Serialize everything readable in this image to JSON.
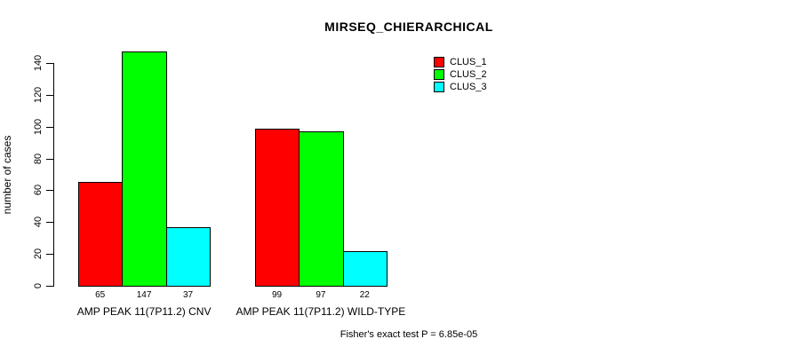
{
  "chart_data": {
    "type": "bar",
    "title": "MIRSEQ_CHIERARCHICAL",
    "xlabel": "",
    "ylabel": "number of cases",
    "ylim": [
      0,
      140
    ],
    "yticks": [
      0,
      20,
      40,
      60,
      80,
      100,
      120,
      140
    ],
    "grid": false,
    "legend_position": "top-right",
    "categories": [
      "AMP PEAK 11(7P11.2) CNV",
      "AMP PEAK 11(7P11.2) WILD-TYPE"
    ],
    "series": [
      {
        "name": "CLUS_1",
        "color": "#ff0000",
        "values": [
          65,
          99
        ]
      },
      {
        "name": "CLUS_2",
        "color": "#00ff00",
        "values": [
          147,
          97
        ]
      },
      {
        "name": "CLUS_3",
        "color": "#00ffff",
        "values": [
          37,
          22
        ]
      }
    ],
    "bar_value_labels": [
      [
        65,
        147,
        37
      ],
      [
        99,
        97,
        22
      ]
    ],
    "annotation": "Fisher's exact test P = 6.85e-05"
  }
}
